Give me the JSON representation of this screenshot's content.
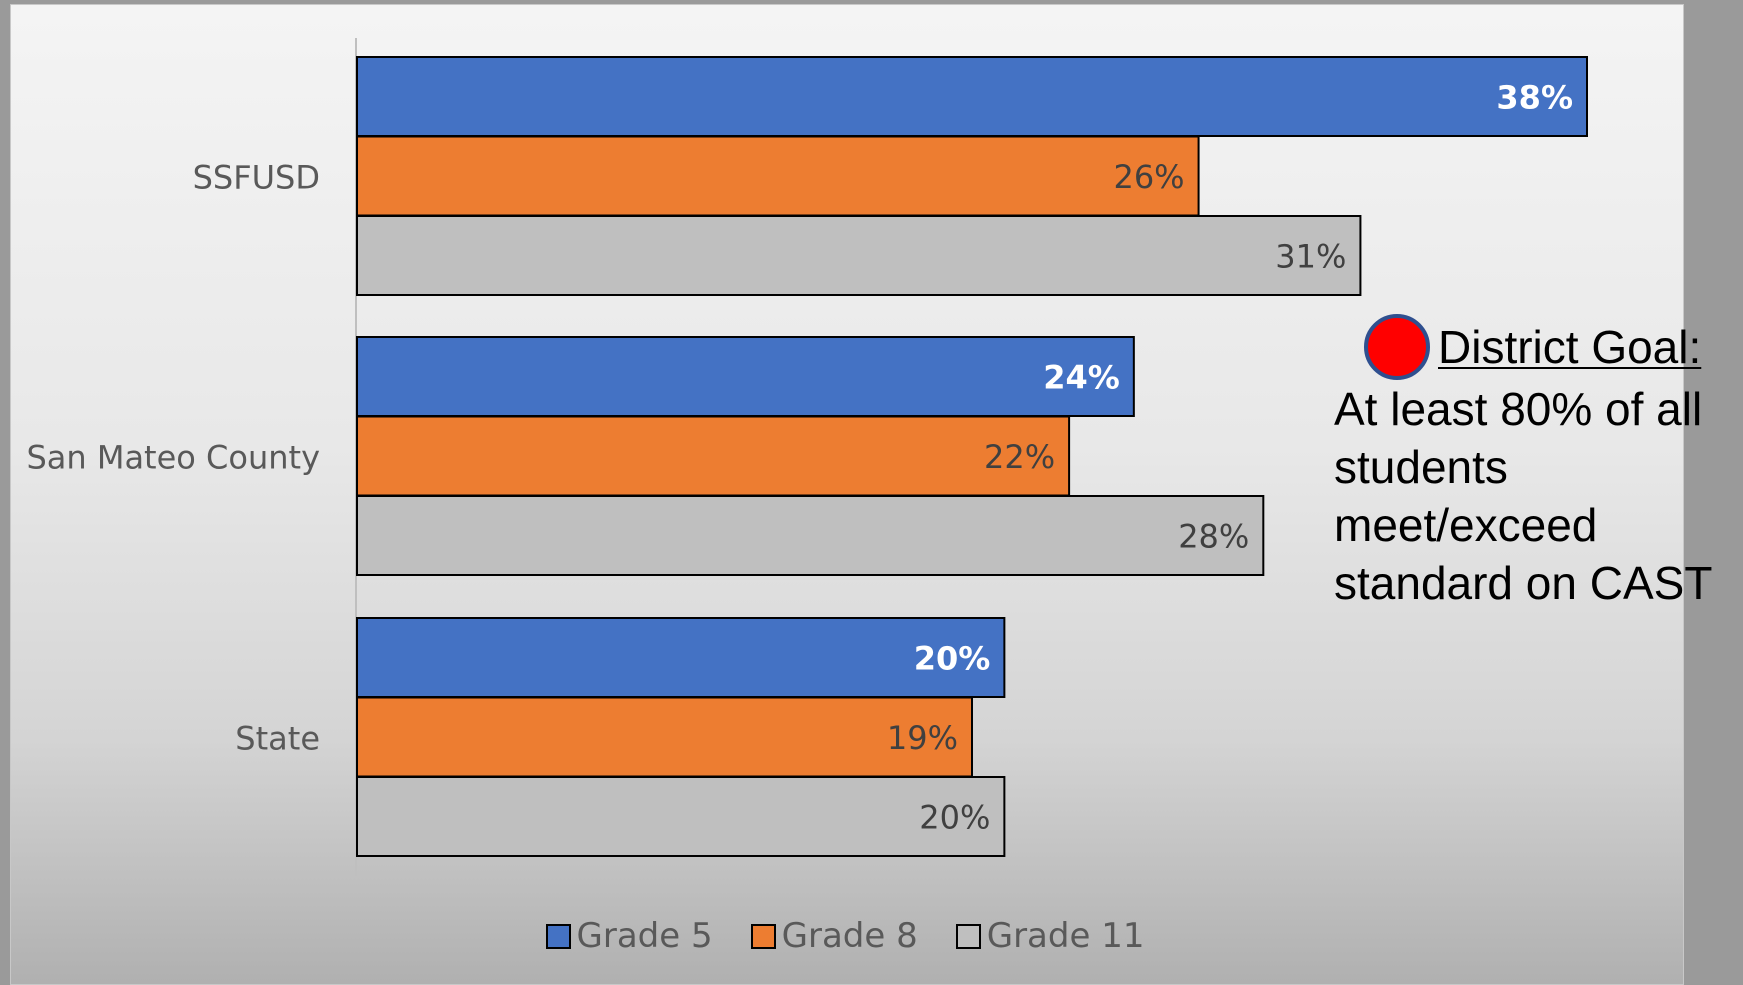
{
  "chart_data": {
    "type": "bar",
    "orientation": "horizontal",
    "categories": [
      "SSFUSD",
      "San Mateo County",
      "State"
    ],
    "series": [
      {
        "name": "Grade 5",
        "color": "#4472C4",
        "label_color": "#ffffff",
        "values": [
          38,
          24,
          20
        ]
      },
      {
        "name": "Grade 8",
        "color": "#ED7D31",
        "label_color": "#404040",
        "values": [
          26,
          22,
          19
        ]
      },
      {
        "name": "Grade 11",
        "color": "#BFBFBF",
        "label_color": "#404040",
        "values": [
          31,
          28,
          20
        ]
      }
    ],
    "data_labels": [
      [
        "38%",
        "26%",
        "31%"
      ],
      [
        "24%",
        "22%",
        "28%"
      ],
      [
        "20%",
        "19%",
        "20%"
      ]
    ],
    "xlim": [
      0,
      40
    ],
    "grid": false,
    "legend": "bottom"
  },
  "annotation": {
    "title": "District Goal:",
    "lines": [
      "At least 80% of all",
      "students",
      "meet/exceed",
      "standard on CAST"
    ],
    "marker_color": "#FF0000"
  }
}
